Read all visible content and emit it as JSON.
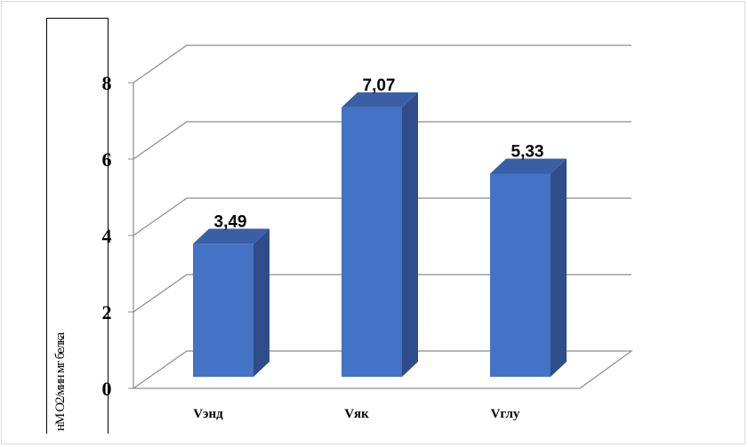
{
  "chart_data": {
    "type": "bar",
    "categories": [
      "Vэнд",
      "Vяк",
      "Vглу"
    ],
    "values": [
      3.49,
      7.07,
      5.33
    ],
    "data_labels": [
      "3,49",
      "7,07",
      "5,33"
    ],
    "yticks": [
      "0",
      "2",
      "4",
      "6",
      "8"
    ],
    "ylim": [
      0,
      8
    ],
    "ylabel": "нМ О2/мин мг белка",
    "grid": true,
    "bar_color": "#4472C4",
    "bar_side_color": "#2E4D8A",
    "bar_top_color": "#3A5FA6"
  }
}
